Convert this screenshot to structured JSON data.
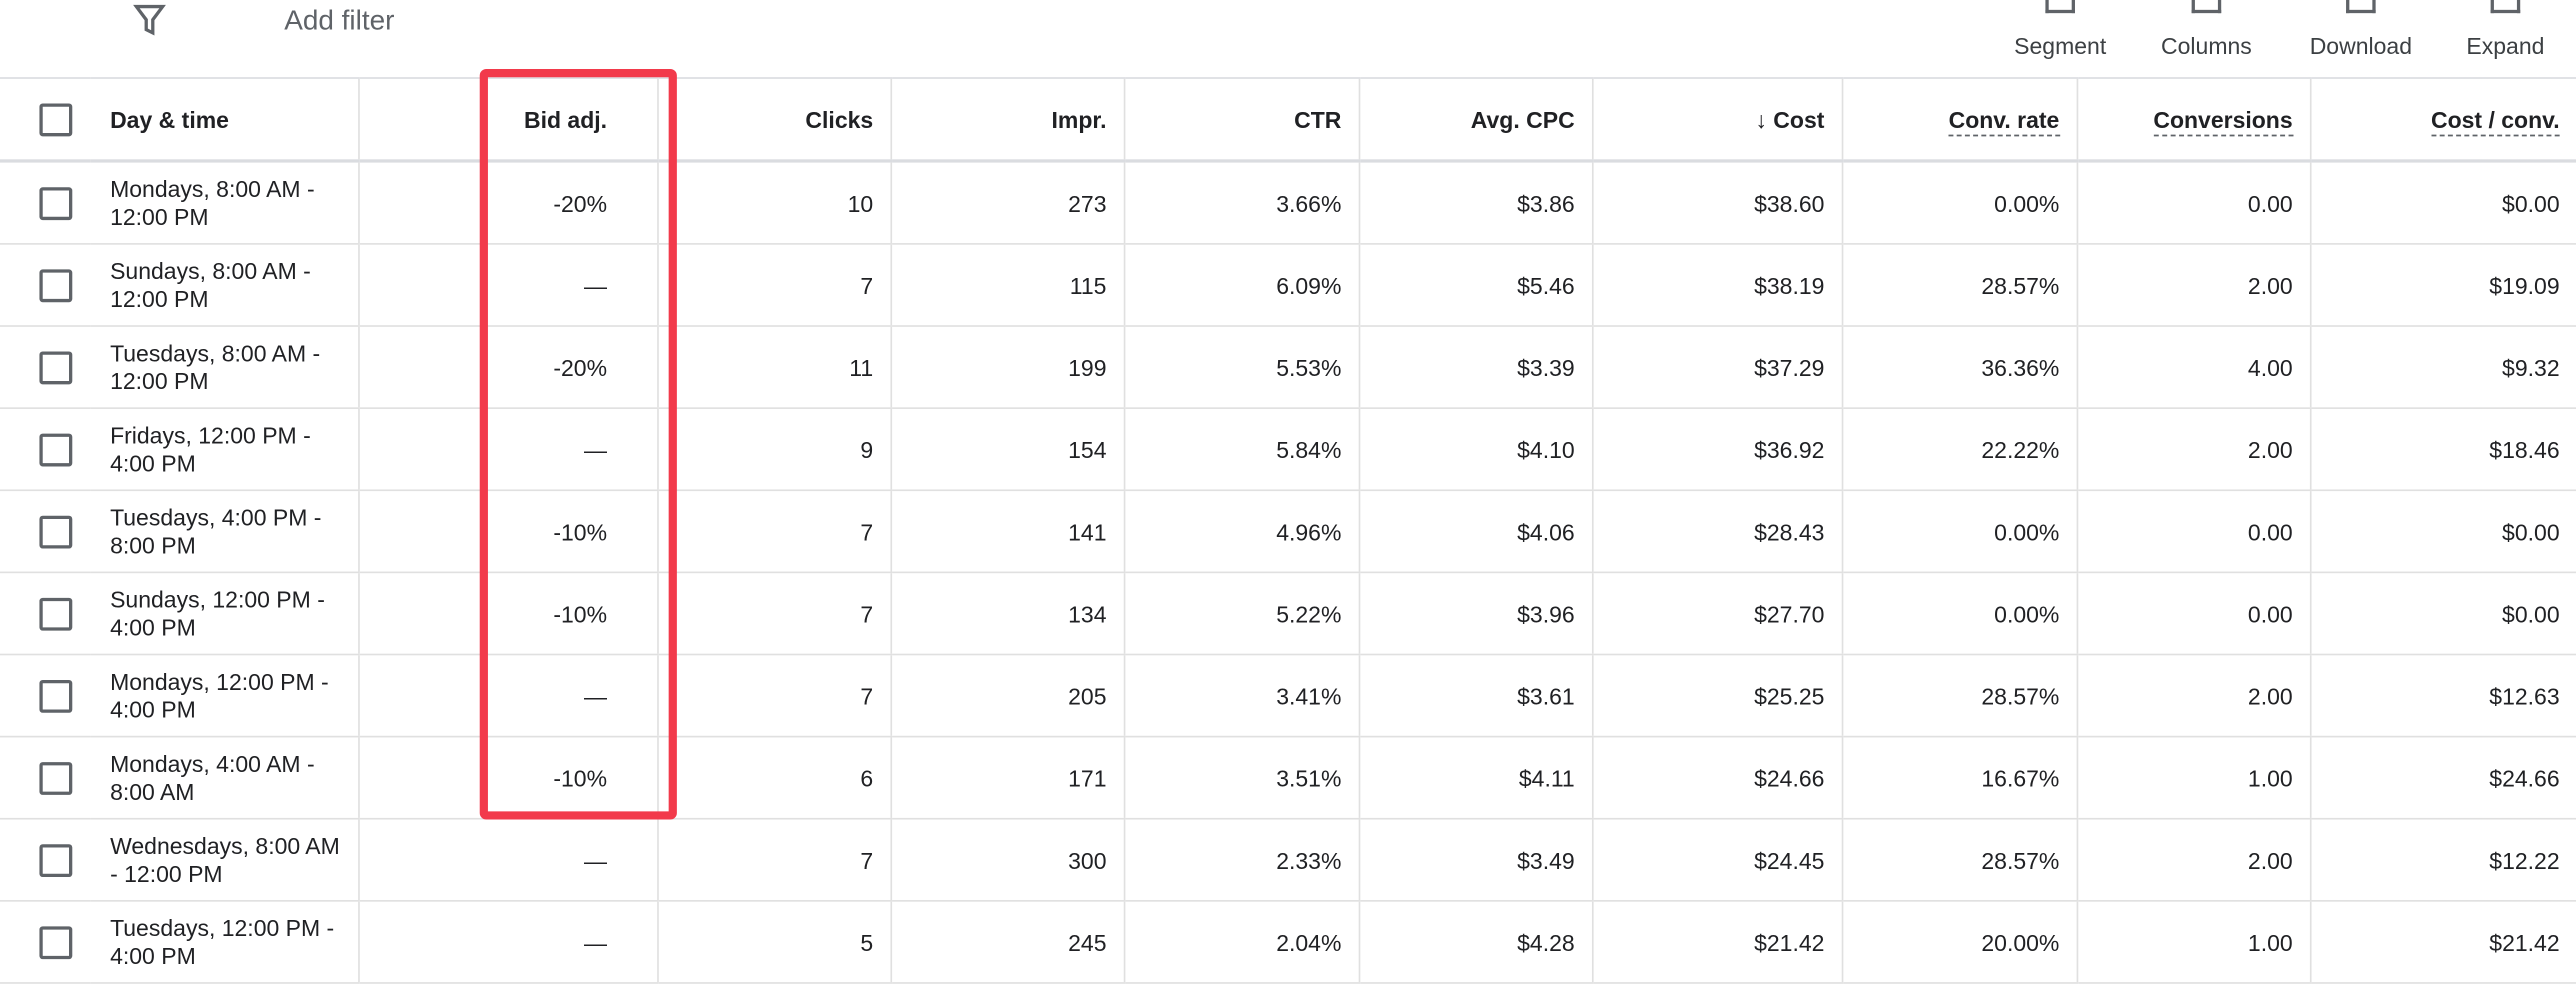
{
  "toolbar": {
    "filter_label": "Add filter",
    "actions": [
      "Segment",
      "Columns",
      "Download",
      "Expand"
    ]
  },
  "table": {
    "columns": [
      "Day & time",
      "Bid adj.",
      "Clicks",
      "Impr.",
      "CTR",
      "Avg. CPC",
      "Cost",
      "Conv. rate",
      "Conversions",
      "Cost / conv."
    ],
    "rows": [
      [
        "Mondays, 8:00 AM - 12:00 PM",
        "-20%",
        "10",
        "273",
        "3.66%",
        "$3.86",
        "$38.60",
        "0.00%",
        "0.00",
        "$0.00"
      ],
      [
        "Sundays, 8:00 AM - 12:00 PM",
        "—",
        "7",
        "115",
        "6.09%",
        "$5.46",
        "$38.19",
        "28.57%",
        "2.00",
        "$19.09"
      ],
      [
        "Tuesdays, 8:00 AM - 12:00 PM",
        "-20%",
        "11",
        "199",
        "5.53%",
        "$3.39",
        "$37.29",
        "36.36%",
        "4.00",
        "$9.32"
      ],
      [
        "Fridays, 12:00 PM - 4:00 PM",
        "—",
        "9",
        "154",
        "5.84%",
        "$4.10",
        "$36.92",
        "22.22%",
        "2.00",
        "$18.46"
      ],
      [
        "Tuesdays, 4:00 PM - 8:00 PM",
        "-10%",
        "7",
        "141",
        "4.96%",
        "$4.06",
        "$28.43",
        "0.00%",
        "0.00",
        "$0.00"
      ],
      [
        "Sundays, 12:00 PM - 4:00 PM",
        "-10%",
        "7",
        "134",
        "5.22%",
        "$3.96",
        "$27.70",
        "0.00%",
        "0.00",
        "$0.00"
      ],
      [
        "Mondays, 12:00 PM - 4:00 PM",
        "—",
        "7",
        "205",
        "3.41%",
        "$3.61",
        "$25.25",
        "28.57%",
        "2.00",
        "$12.63"
      ],
      [
        "Mondays, 4:00 AM - 8:00 AM",
        "-10%",
        "6",
        "171",
        "3.51%",
        "$4.11",
        "$24.66",
        "16.67%",
        "1.00",
        "$24.66"
      ],
      [
        "Wednesdays, 8:00 AM - 12:00 PM",
        "—",
        "7",
        "300",
        "2.33%",
        "$3.49",
        "$24.45",
        "28.57%",
        "2.00",
        "$12.22"
      ],
      [
        "Tuesdays, 12:00 PM - 4:00 PM",
        "—",
        "5",
        "245",
        "2.04%",
        "$4.28",
        "$21.42",
        "20.00%",
        "1.00",
        "$21.42"
      ]
    ]
  }
}
